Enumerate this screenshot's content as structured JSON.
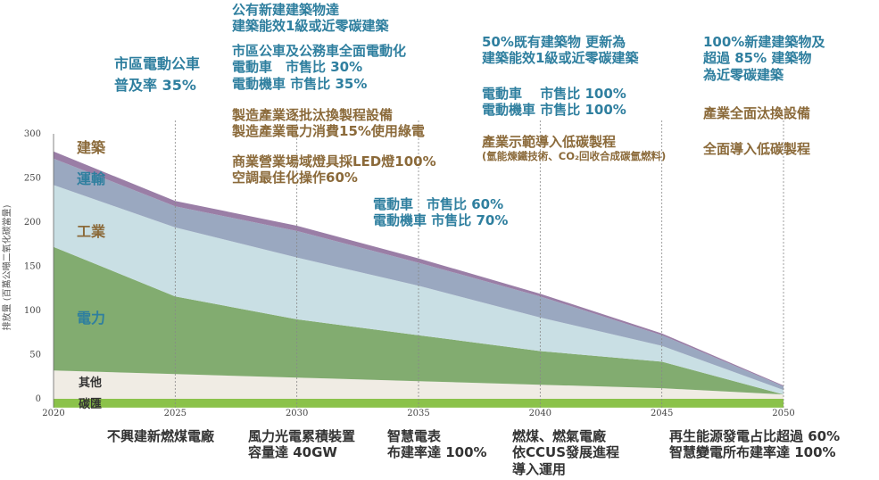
{
  "chart_data": {
    "type": "area",
    "stacked": true,
    "x": [
      2020,
      2025,
      2030,
      2035,
      2040,
      2045,
      2050
    ],
    "xlim": [
      2020,
      2050
    ],
    "ylim": [
      0,
      300
    ],
    "yticks": [
      0,
      50,
      100,
      150,
      200,
      250,
      300
    ],
    "xticks": [
      2020,
      2025,
      2030,
      2035,
      2040,
      2045,
      2050
    ],
    "ylabel": "排放量 (百萬公噸二氧化碳當量)",
    "series": [
      {
        "name": "碳匯",
        "color": "#8bc24a",
        "values": [
          -10,
          -10,
          -10,
          -10,
          -10,
          -10,
          -10
        ]
      },
      {
        "name": "其他",
        "color": "#f0ece4",
        "values": [
          32,
          28,
          24,
          20,
          16,
          12,
          5
        ]
      },
      {
        "name": "電力",
        "color": "#82ac70",
        "values": [
          140,
          88,
          66,
          52,
          38,
          30,
          0
        ]
      },
      {
        "name": "工業",
        "color": "#c9dfe4",
        "values": [
          70,
          78,
          70,
          56,
          38,
          18,
          5
        ]
      },
      {
        "name": "運輸",
        "color": "#9aa8c0",
        "values": [
          30,
          24,
          30,
          26,
          24,
          12,
          4
        ]
      },
      {
        "name": "建築",
        "color": "#9a7ea6",
        "values": [
          8,
          6,
          6,
          5,
          3,
          2,
          1
        ]
      }
    ]
  },
  "labels": {
    "building": "建築",
    "transport": "運輸",
    "industry": "工業",
    "power": "電力",
    "other": "其他",
    "sink": "碳匯"
  },
  "annotations": {
    "t2025": [
      "市區電動公車",
      "普及率 35%"
    ],
    "t2030_a": [
      "公有新建建築物達",
      "建築能效1級或近零碳建築"
    ],
    "t2030_b": [
      "市區公車及公務車全面電動化",
      "電動車　市售比 30%",
      "電動機車 市售比 35%"
    ],
    "t2030_c": [
      "製造產業逐批汰換製程設備",
      "製造產業電力消費15%使用綠電"
    ],
    "t2030_d": [
      "商業營業場域燈具採LED燈100%",
      "空調最佳化操作60%"
    ],
    "t2035": [
      "電動車　市售比 60%",
      "電動機車 市售比 70%"
    ],
    "t2040_a": [
      "50%既有建築物 更新為",
      "建築能效1級或近零碳建築"
    ],
    "t2040_b": [
      "電動車　 市售比 100%",
      "電動機車 市售比 100%"
    ],
    "t2040_c1": "產業示範導入低碳製程",
    "t2040_c2": "(氫能煉鐵技術、CO₂回收合成碳氫燃料)",
    "t2050_a": [
      "100%新建建築物及",
      "超過 85% 建築物",
      "為近零碳建築"
    ],
    "t2050_b": "產業全面汰換設備",
    "t2050_c": "全面導入低碳製程",
    "b2025": [
      "不興建新燃煤電廠"
    ],
    "b2030": [
      "風力光電累積裝置",
      "容量達 40GW"
    ],
    "b2035": [
      "智慧電表",
      "布建率達 100%"
    ],
    "b2040": [
      "燃煤、燃氣電廠",
      "依CCUS發展進程",
      "導入運用"
    ],
    "b2050": [
      "再生能源發電占比超過 60%",
      "智慧變電所布建率達 100%"
    ]
  }
}
